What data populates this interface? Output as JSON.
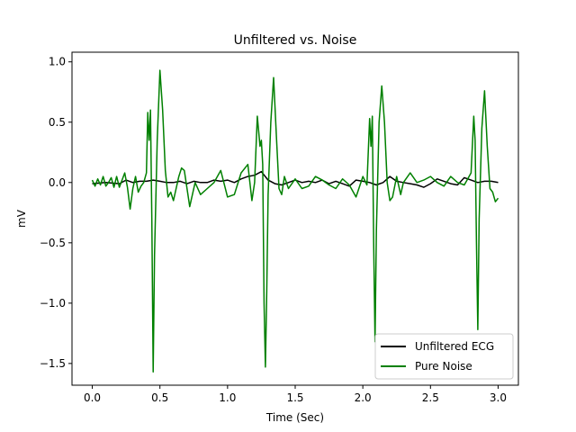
{
  "chart_data": {
    "type": "line",
    "title": "Unfiltered vs. Noise",
    "xlabel": "Time (Sec)",
    "ylabel": "mV",
    "xlim": [
      -0.15,
      3.15
    ],
    "ylim": [
      -1.68,
      1.08
    ],
    "xticks": [
      0.0,
      0.5,
      1.0,
      1.5,
      2.0,
      2.5,
      3.0
    ],
    "xtick_labels": [
      "0.0",
      "0.5",
      "1.0",
      "1.5",
      "2.0",
      "2.5",
      "3.0"
    ],
    "yticks": [
      1.0,
      0.5,
      0.0,
      -0.5,
      -1.0,
      -1.5
    ],
    "ytick_labels": [
      "1.0",
      "0.5",
      "0.0",
      "−0.5",
      "−1.0",
      "−1.5"
    ],
    "grid": false,
    "legend_position": "lower-right",
    "series": [
      {
        "name": "Unfiltered ECG",
        "color": "#000000",
        "x": [
          0.0,
          0.1,
          0.2,
          0.25,
          0.3,
          0.35,
          0.4,
          0.45,
          0.5,
          0.55,
          0.6,
          0.65,
          0.7,
          0.75,
          0.8,
          0.85,
          0.9,
          0.95,
          1.0,
          1.05,
          1.1,
          1.15,
          1.2,
          1.25,
          1.3,
          1.35,
          1.4,
          1.45,
          1.5,
          1.55,
          1.6,
          1.65,
          1.7,
          1.75,
          1.8,
          1.85,
          1.9,
          1.95,
          2.0,
          2.05,
          2.1,
          2.15,
          2.2,
          2.25,
          2.3,
          2.35,
          2.4,
          2.45,
          2.5,
          2.55,
          2.6,
          2.65,
          2.7,
          2.75,
          2.8,
          2.85,
          2.9,
          2.95,
          3.0
        ],
        "y": [
          -0.01,
          0.0,
          -0.01,
          0.02,
          0.0,
          0.01,
          0.01,
          0.02,
          0.01,
          0.0,
          0.0,
          0.01,
          -0.01,
          0.01,
          0.0,
          0.0,
          0.02,
          0.01,
          0.02,
          0.0,
          0.03,
          0.05,
          0.06,
          0.09,
          0.02,
          -0.01,
          -0.02,
          0.0,
          0.02,
          0.0,
          0.01,
          0.0,
          0.02,
          -0.01,
          0.01,
          -0.01,
          -0.03,
          0.02,
          0.01,
          0.0,
          -0.02,
          0.0,
          0.05,
          0.01,
          0.0,
          -0.01,
          -0.02,
          -0.04,
          -0.01,
          0.03,
          0.01,
          -0.01,
          -0.02,
          0.04,
          0.02,
          0.0,
          0.01,
          0.01,
          0.0
        ]
      },
      {
        "name": "Pure Noise",
        "color": "#008000",
        "x": [
          0.0,
          0.02,
          0.04,
          0.06,
          0.08,
          0.1,
          0.12,
          0.14,
          0.16,
          0.18,
          0.2,
          0.22,
          0.24,
          0.26,
          0.28,
          0.3,
          0.32,
          0.34,
          0.36,
          0.38,
          0.4,
          0.41,
          0.42,
          0.43,
          0.44,
          0.45,
          0.46,
          0.48,
          0.5,
          0.52,
          0.54,
          0.56,
          0.58,
          0.6,
          0.62,
          0.64,
          0.66,
          0.68,
          0.7,
          0.72,
          0.74,
          0.76,
          0.8,
          0.85,
          0.9,
          0.95,
          1.0,
          1.05,
          1.1,
          1.15,
          1.18,
          1.2,
          1.22,
          1.24,
          1.25,
          1.26,
          1.27,
          1.28,
          1.29,
          1.3,
          1.32,
          1.34,
          1.36,
          1.38,
          1.4,
          1.42,
          1.45,
          1.5,
          1.55,
          1.6,
          1.65,
          1.7,
          1.75,
          1.8,
          1.85,
          1.9,
          1.95,
          2.0,
          2.03,
          2.05,
          2.06,
          2.07,
          2.08,
          2.09,
          2.1,
          2.12,
          2.14,
          2.16,
          2.18,
          2.2,
          2.22,
          2.25,
          2.28,
          2.3,
          2.35,
          2.4,
          2.45,
          2.5,
          2.55,
          2.6,
          2.65,
          2.7,
          2.75,
          2.8,
          2.82,
          2.83,
          2.84,
          2.85,
          2.86,
          2.88,
          2.9,
          2.92,
          2.94,
          2.96,
          2.98,
          3.0
        ],
        "y": [
          0.02,
          -0.03,
          0.03,
          -0.02,
          0.05,
          -0.03,
          0.0,
          0.04,
          -0.04,
          0.05,
          -0.04,
          0.02,
          0.08,
          -0.04,
          -0.22,
          -0.05,
          0.05,
          -0.08,
          -0.03,
          0.0,
          0.08,
          0.58,
          0.35,
          0.6,
          -0.3,
          -1.57,
          -0.6,
          0.35,
          0.93,
          0.6,
          0.1,
          -0.12,
          -0.08,
          -0.15,
          -0.05,
          0.05,
          0.12,
          0.1,
          -0.05,
          -0.2,
          -0.1,
          0.0,
          -0.1,
          -0.05,
          0.0,
          0.1,
          -0.12,
          -0.1,
          0.08,
          0.15,
          -0.15,
          0.0,
          0.55,
          0.3,
          0.35,
          0.15,
          -1.0,
          -1.53,
          -0.9,
          -0.1,
          0.5,
          0.87,
          0.4,
          -0.05,
          -0.1,
          0.05,
          -0.05,
          0.03,
          -0.05,
          -0.03,
          0.05,
          0.02,
          -0.02,
          -0.05,
          0.03,
          -0.02,
          -0.12,
          0.05,
          -0.02,
          0.53,
          0.3,
          0.55,
          -0.5,
          -1.32,
          -0.4,
          0.5,
          0.8,
          0.5,
          0.0,
          -0.15,
          -0.12,
          0.05,
          -0.1,
          0.0,
          0.08,
          0.0,
          0.02,
          0.05,
          0.0,
          -0.03,
          0.05,
          0.0,
          -0.02,
          0.08,
          0.55,
          0.35,
          -0.5,
          -1.22,
          -0.3,
          0.45,
          0.76,
          0.3,
          -0.05,
          -0.08,
          -0.16,
          -0.13
        ]
      }
    ]
  }
}
